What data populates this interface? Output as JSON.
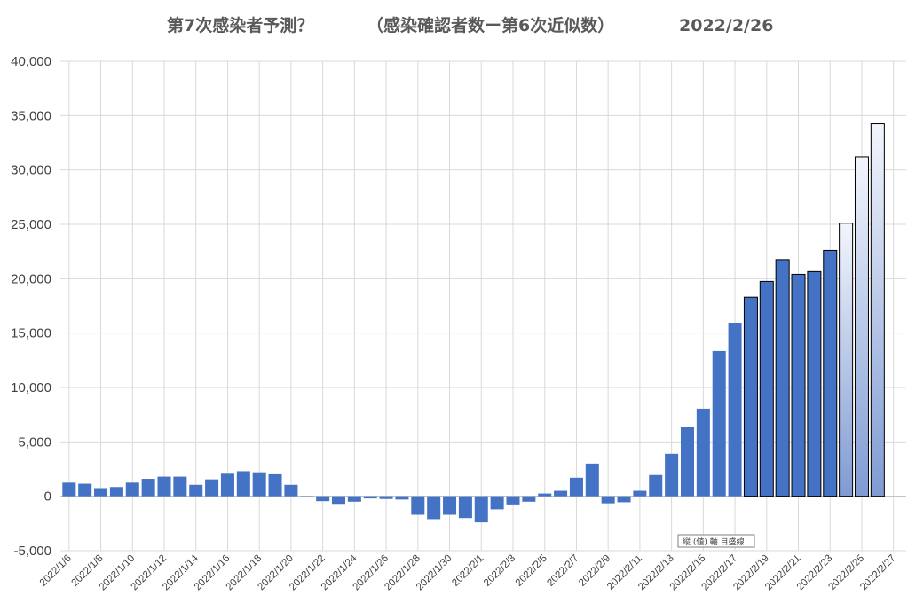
{
  "chart_data": {
    "type": "bar",
    "title_left": "第7次感染者予測？",
    "title_mid": "（感染確認者数ー第6次近似数）",
    "title_right": "2022/2/26",
    "ylim": [
      -5000,
      40000
    ],
    "yticks": [
      "-5,000",
      "0",
      "5,000",
      "10,000",
      "15,000",
      "20,000",
      "25,000",
      "30,000",
      "35,000",
      "40,000"
    ],
    "ytick_values": [
      -5000,
      0,
      5000,
      10000,
      15000,
      20000,
      25000,
      30000,
      35000,
      40000
    ],
    "grid": true,
    "legend": "none",
    "xtick_labels": [
      "2022/1/6",
      "2022/1/8",
      "2022/1/10",
      "2022/1/12",
      "2022/1/14",
      "2022/1/16",
      "2022/1/18",
      "2022/1/20",
      "2022/1/22",
      "2022/1/24",
      "2022/1/26",
      "2022/1/28",
      "2022/1/30",
      "2022/2/1",
      "2022/2/3",
      "2022/2/5",
      "2022/2/7",
      "2022/2/9",
      "2022/2/11",
      "2022/2/13",
      "2022/2/15",
      "2022/2/17",
      "2022/2/19",
      "2022/2/21",
      "2022/2/23",
      "2022/2/25",
      "2022/2/27"
    ],
    "categories": [
      "2022/1/6",
      "2022/1/7",
      "2022/1/8",
      "2022/1/9",
      "2022/1/10",
      "2022/1/11",
      "2022/1/12",
      "2022/1/13",
      "2022/1/14",
      "2022/1/15",
      "2022/1/16",
      "2022/1/17",
      "2022/1/18",
      "2022/1/19",
      "2022/1/20",
      "2022/1/21",
      "2022/1/22",
      "2022/1/23",
      "2022/1/24",
      "2022/1/25",
      "2022/1/26",
      "2022/1/27",
      "2022/1/28",
      "2022/1/29",
      "2022/1/30",
      "2022/1/31",
      "2022/2/1",
      "2022/2/2",
      "2022/2/3",
      "2022/2/4",
      "2022/2/5",
      "2022/2/6",
      "2022/2/7",
      "2022/2/8",
      "2022/2/9",
      "2022/2/10",
      "2022/2/11",
      "2022/2/12",
      "2022/2/13",
      "2022/2/14",
      "2022/2/15",
      "2022/2/16",
      "2022/2/17",
      "2022/2/18",
      "2022/2/19",
      "2022/2/20",
      "2022/2/21",
      "2022/2/22",
      "2022/2/23",
      "2022/2/24",
      "2022/2/25",
      "2022/2/26"
    ],
    "values": [
      1250,
      1150,
      750,
      850,
      1250,
      1600,
      1800,
      1800,
      1050,
      1550,
      2150,
      2300,
      2200,
      2100,
      1050,
      -100,
      -450,
      -700,
      -500,
      -200,
      -250,
      -300,
      -1700,
      -2100,
      -1700,
      -2000,
      -2400,
      -1200,
      -750,
      -500,
      250,
      500,
      1700,
      3000,
      -650,
      -550,
      500,
      1950,
      3900,
      6350,
      8050,
      13350,
      15950,
      18300,
      19750,
      21750,
      20400,
      20650,
      22600,
      25100,
      31200,
      34250
    ],
    "highlighted_from_index": 43,
    "projected_from_index": 49,
    "annotation": "縦 (値) 軸 目盛線",
    "colors": {
      "bar_fill": "#4472C4",
      "bar_highlight_stroke": "#000000",
      "projected_top": "#F2F5FC",
      "projected_bottom": "#7F9BD3",
      "gridline": "#D9D9D9",
      "text": "#595959"
    }
  }
}
